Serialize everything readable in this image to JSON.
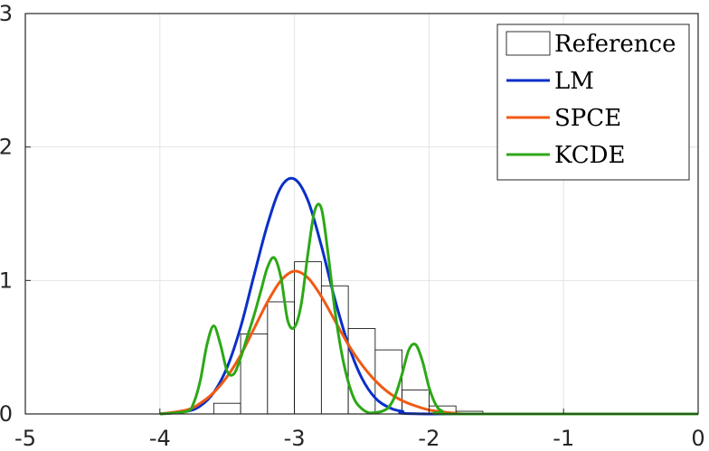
{
  "chart_data": {
    "type": "line",
    "title": "",
    "xlabel": "",
    "ylabel": "",
    "xlim": [
      -5,
      0
    ],
    "ylim": [
      0,
      3
    ],
    "xticks": [
      "-5",
      "-4",
      "-3",
      "-2",
      "-1",
      "0"
    ],
    "yticks": [
      "0",
      "1",
      "2",
      "3"
    ],
    "grid": true,
    "legend_position": "top-right",
    "histogram": {
      "name": "Reference",
      "bin_edges": [
        -3.6,
        -3.4,
        -3.2,
        -3.0,
        -2.8,
        -2.6,
        -2.4,
        -2.2,
        -2.0,
        -1.8,
        -1.6
      ],
      "values": [
        0.08,
        0.6,
        0.84,
        1.14,
        0.96,
        0.64,
        0.48,
        0.18,
        0.06,
        0.02
      ],
      "color": "#000000"
    },
    "series": [
      {
        "name": "LM",
        "color": "#0a2fc9",
        "x": [
          -4.0,
          -3.8,
          -3.7,
          -3.6,
          -3.5,
          -3.4,
          -3.3,
          -3.2,
          -3.1,
          -3.0,
          -2.9,
          -2.8,
          -2.7,
          -2.6,
          -2.5,
          -2.4,
          -2.3,
          -2.2,
          -2.0,
          0.0
        ],
        "y": [
          0.0,
          0.02,
          0.06,
          0.16,
          0.35,
          0.65,
          1.04,
          1.42,
          1.7,
          1.76,
          1.6,
          1.26,
          0.86,
          0.52,
          0.27,
          0.12,
          0.05,
          0.02,
          0.0,
          0.0
        ]
      },
      {
        "name": "SPCE",
        "color": "#f05a14",
        "x": [
          -4.0,
          -3.8,
          -3.7,
          -3.6,
          -3.5,
          -3.4,
          -3.3,
          -3.2,
          -3.1,
          -3.0,
          -2.9,
          -2.8,
          -2.7,
          -2.6,
          -2.5,
          -2.4,
          -2.3,
          -2.2,
          -2.1,
          -2.0,
          -1.9,
          -1.8,
          -1.6,
          0.0
        ],
        "y": [
          0.0,
          0.03,
          0.08,
          0.16,
          0.28,
          0.44,
          0.64,
          0.84,
          1.0,
          1.07,
          1.02,
          0.88,
          0.7,
          0.52,
          0.37,
          0.25,
          0.16,
          0.1,
          0.06,
          0.03,
          0.015,
          0.005,
          0.0,
          0.0
        ]
      },
      {
        "name": "KCDE",
        "color": "#2ca816",
        "x": [
          -4.0,
          -3.8,
          -3.75,
          -3.7,
          -3.65,
          -3.6,
          -3.55,
          -3.5,
          -3.45,
          -3.4,
          -3.35,
          -3.3,
          -3.25,
          -3.2,
          -3.15,
          -3.1,
          -3.05,
          -3.0,
          -2.95,
          -2.9,
          -2.85,
          -2.8,
          -2.75,
          -2.7,
          -2.65,
          -2.6,
          -2.55,
          -2.5,
          -2.45,
          -2.4,
          -2.35,
          -2.3,
          -2.25,
          -2.2,
          -2.15,
          -2.1,
          -2.05,
          -2.0,
          -1.95,
          -1.9,
          -1.8,
          0.0
        ],
        "y": [
          0.0,
          0.02,
          0.08,
          0.25,
          0.52,
          0.66,
          0.52,
          0.32,
          0.3,
          0.42,
          0.58,
          0.74,
          0.92,
          1.1,
          1.17,
          1.02,
          0.7,
          0.65,
          0.82,
          1.2,
          1.52,
          1.54,
          1.2,
          0.78,
          0.46,
          0.24,
          0.1,
          0.04,
          0.01,
          0.01,
          0.02,
          0.05,
          0.14,
          0.3,
          0.48,
          0.52,
          0.4,
          0.2,
          0.07,
          0.02,
          0.0,
          0.0
        ]
      }
    ]
  }
}
